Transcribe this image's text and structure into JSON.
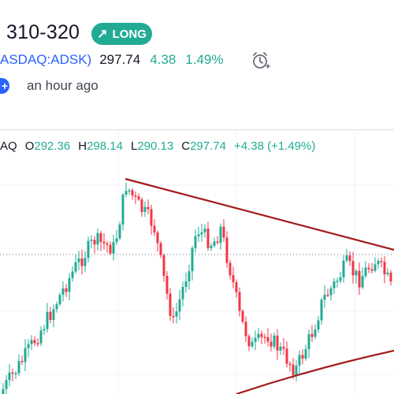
{
  "header": {
    "title": "310-320",
    "badge_label": "LONG",
    "badge_arrow": "↗",
    "symbol": "ASDAQ:ADSK)",
    "price": "297.74",
    "change": "4.38",
    "change_pct": "1.49%",
    "time_ago": "an hour ago",
    "plus": "+"
  },
  "ohlc": {
    "exchange_fragment": "AQ",
    "o_label": "O",
    "o_value": "292.36",
    "h_label": "H",
    "h_value": "298.14",
    "l_label": "L",
    "l_value": "290.13",
    "c_label": "C",
    "c_value": "297.74",
    "delta": "+4.38 (+1.49%)"
  },
  "colors": {
    "up": "#22ab94",
    "down": "#f23645",
    "trendline": "#a31b1b",
    "badge": "#22ab94"
  },
  "icons": {
    "alarm": "alarm-clock-icon",
    "arrow": "arrow-up-right-icon"
  }
}
